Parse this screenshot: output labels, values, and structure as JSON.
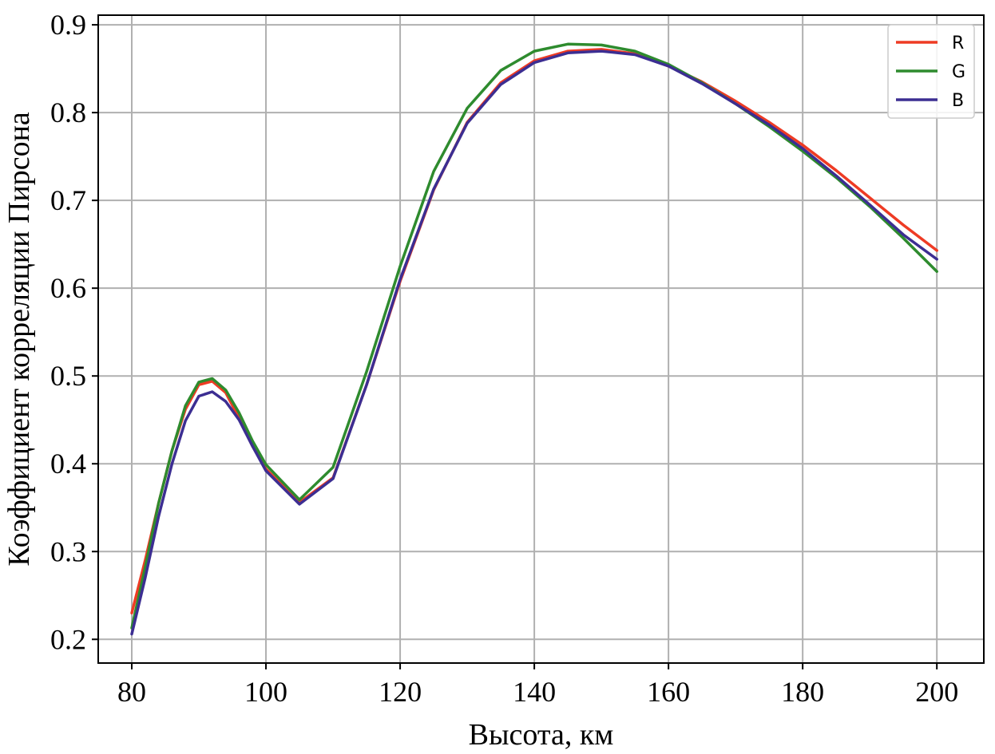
{
  "chart_data": {
    "type": "line",
    "title": "",
    "xlabel": "Высота, км",
    "ylabel": "Коэффициент корреляции Пирсона",
    "xlim": [
      75,
      207
    ],
    "ylim": [
      0.173,
      0.911
    ],
    "xticks": [
      80,
      100,
      120,
      140,
      160,
      180,
      200
    ],
    "xtick_labels": [
      "80",
      "100",
      "120",
      "140",
      "160",
      "180",
      "200"
    ],
    "yticks": [
      0.2,
      0.3,
      0.4,
      0.5,
      0.6,
      0.7,
      0.8,
      0.9
    ],
    "ytick_labels": [
      "0.2",
      "0.3",
      "0.4",
      "0.5",
      "0.6",
      "0.7",
      "0.8",
      "0.9"
    ],
    "grid": true,
    "legend_position": "top-right",
    "x": [
      80,
      82,
      84,
      86,
      88,
      90,
      92,
      94,
      96,
      98,
      100,
      105,
      110,
      115,
      120,
      125,
      130,
      135,
      140,
      145,
      150,
      155,
      160,
      165,
      170,
      175,
      180,
      185,
      190,
      195,
      200
    ],
    "series": [
      {
        "name": "R",
        "color": "#ee3b24",
        "values": [
          0.23,
          0.29,
          0.355,
          0.415,
          0.462,
          0.49,
          0.494,
          0.481,
          0.452,
          0.42,
          0.394,
          0.356,
          0.384,
          0.49,
          0.608,
          0.712,
          0.789,
          0.834,
          0.859,
          0.87,
          0.872,
          0.867,
          0.853,
          0.835,
          0.813,
          0.789,
          0.763,
          0.734,
          0.703,
          0.672,
          0.643
        ]
      },
      {
        "name": "G",
        "color": "#2e8b2e",
        "values": [
          0.213,
          0.282,
          0.355,
          0.415,
          0.466,
          0.493,
          0.497,
          0.484,
          0.458,
          0.426,
          0.399,
          0.359,
          0.396,
          0.505,
          0.625,
          0.733,
          0.805,
          0.848,
          0.87,
          0.878,
          0.877,
          0.87,
          0.855,
          0.834,
          0.81,
          0.784,
          0.756,
          0.726,
          0.693,
          0.657,
          0.619
        ]
      },
      {
        "name": "B",
        "color": "#3c2e92",
        "values": [
          0.206,
          0.27,
          0.34,
          0.4,
          0.449,
          0.477,
          0.482,
          0.471,
          0.45,
          0.42,
          0.392,
          0.354,
          0.383,
          0.49,
          0.61,
          0.713,
          0.788,
          0.832,
          0.857,
          0.868,
          0.87,
          0.866,
          0.853,
          0.833,
          0.81,
          0.786,
          0.759,
          0.728,
          0.695,
          0.661,
          0.633
        ]
      }
    ]
  }
}
